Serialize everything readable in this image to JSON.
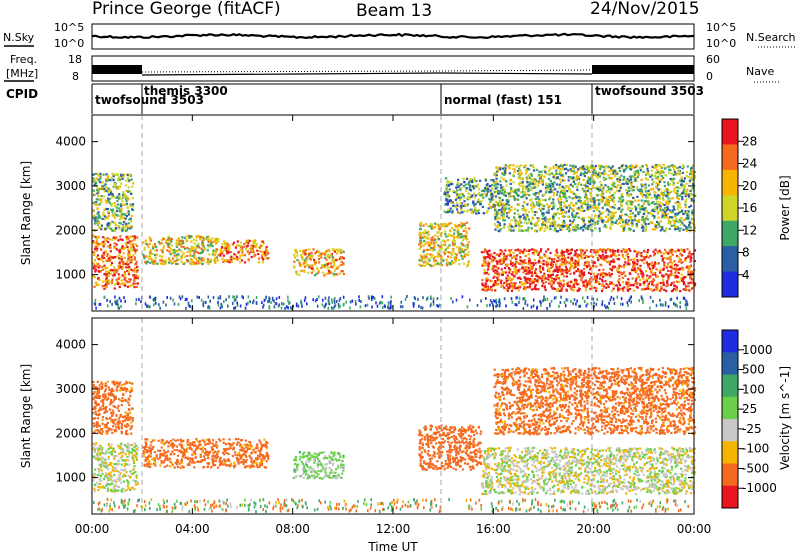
{
  "header": {
    "station": "Prince George (fitACF)",
    "beam": "Beam 13",
    "date": "24/Nov/2015"
  },
  "top_panels": {
    "nsky_label": "N.Sky",
    "nsky_ticks": [
      "10^5",
      "10^0"
    ],
    "nsearch_label": "N.Search",
    "nsearch_ticks": [
      "10^5",
      "10^0"
    ],
    "freq_label_1": "Freq.",
    "freq_label_2": "[MHz]",
    "freq_ticks": [
      "18",
      "8"
    ],
    "nave_label": "Nave",
    "nave_ticks": [
      "60",
      "0"
    ],
    "cpid_label": "CPID"
  },
  "cpid_segments": [
    {
      "label": "twofsound 3503",
      "start_h": 0.0
    },
    {
      "label": "themis 3300",
      "start_h": 1.8
    },
    {
      "label": "normal (fast) 151",
      "start_h": 14.0
    },
    {
      "label": "twofsound 3503",
      "start_h": 19.9
    }
  ],
  "x_axis": {
    "label": "Time UT",
    "ticks": [
      "00:00",
      "04:00",
      "08:00",
      "12:00",
      "16:00",
      "20:00",
      "00:00"
    ],
    "range_h": [
      0,
      24
    ]
  },
  "power_panel": {
    "ylabel": "Slant Range [km]",
    "yticks": [
      "4000",
      "3000",
      "2000",
      "1000"
    ],
    "yrange_km": [
      180,
      4600
    ],
    "colorbar_label": "Power [dB]",
    "colorbar_ticks": [
      "28",
      "24",
      "20",
      "16",
      "12",
      "8",
      "4"
    ],
    "colorbar_colors": [
      "#e8141e",
      "#f56a1e",
      "#f7b500",
      "#cfd62a",
      "#3ea866",
      "#2a5fa4",
      "#1f2de0"
    ]
  },
  "velocity_panel": {
    "ylabel": "Slant Range [km]",
    "yticks": [
      "4000",
      "3000",
      "2000",
      "1000"
    ],
    "yrange_km": [
      180,
      4600
    ],
    "colorbar_label": "Velocity [m s^-1]",
    "colorbar_ticks": [
      "1000",
      "500",
      "100",
      "25",
      "-25",
      "-100",
      "-500",
      "-1000"
    ],
    "colorbar_colors": [
      "#1f2de0",
      "#2a5fa4",
      "#3ea866",
      "#6ad04a",
      "#c8c8c8",
      "#f5b400",
      "#f56a1e",
      "#e8141e"
    ]
  },
  "chart_data": [
    {
      "type": "heatmap",
      "title": "",
      "xlabel": "Time UT",
      "ylabel": "Slant Range [km]",
      "zlabel": "Power [dB]",
      "xlim": [
        0,
        24
      ],
      "ylim": [
        180,
        4600
      ],
      "echo_regions": [
        {
          "t_start": 0.0,
          "t_end": 1.8,
          "r_start": 700,
          "r_end": 1900,
          "value": 24
        },
        {
          "t_start": 0.0,
          "t_end": 1.6,
          "r_start": 2000,
          "r_end": 3300,
          "value": 14
        },
        {
          "t_start": 2.0,
          "t_end": 5.0,
          "r_start": 1250,
          "r_end": 1900,
          "value": 18
        },
        {
          "t_start": 5.0,
          "t_end": 7.0,
          "r_start": 1300,
          "r_end": 1800,
          "value": 22
        },
        {
          "t_start": 8.0,
          "t_end": 10.0,
          "r_start": 1000,
          "r_end": 1600,
          "value": 20
        },
        {
          "t_start": 13.0,
          "t_end": 15.0,
          "r_start": 1200,
          "r_end": 2200,
          "value": 18
        },
        {
          "t_start": 14.0,
          "t_end": 16.0,
          "r_start": 2400,
          "r_end": 3200,
          "value": 12
        },
        {
          "t_start": 15.5,
          "t_end": 24.0,
          "r_start": 650,
          "r_end": 1600,
          "value": 26
        },
        {
          "t_start": 16.0,
          "t_end": 24.0,
          "r_start": 2000,
          "r_end": 3500,
          "value": 14
        }
      ]
    },
    {
      "type": "heatmap",
      "title": "",
      "xlabel": "Time UT",
      "ylabel": "Slant Range [km]",
      "zlabel": "Velocity [m s^-1]",
      "xlim": [
        0,
        24
      ],
      "ylim": [
        180,
        4600
      ],
      "echo_regions": [
        {
          "t_start": 0.0,
          "t_end": 1.8,
          "r_start": 700,
          "r_end": 1800,
          "value": 0
        },
        {
          "t_start": 0.0,
          "t_end": 1.6,
          "r_start": 2000,
          "r_end": 3200,
          "value": -150
        },
        {
          "t_start": 2.0,
          "t_end": 7.0,
          "r_start": 1250,
          "r_end": 1900,
          "value": -150
        },
        {
          "t_start": 8.0,
          "t_end": 10.0,
          "r_start": 1000,
          "r_end": 1600,
          "value": 50
        },
        {
          "t_start": 13.0,
          "t_end": 15.5,
          "r_start": 1200,
          "r_end": 2200,
          "value": -200
        },
        {
          "t_start": 15.5,
          "t_end": 24.0,
          "r_start": 650,
          "r_end": 1700,
          "value": 0
        },
        {
          "t_start": 16.0,
          "t_end": 24.0,
          "r_start": 2000,
          "r_end": 3500,
          "value": -150
        }
      ]
    }
  ]
}
